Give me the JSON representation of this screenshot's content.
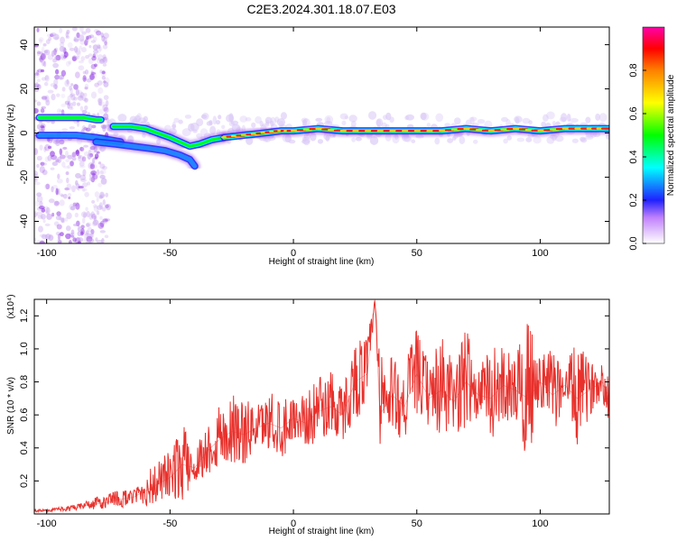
{
  "title": "C2E3.2024.301.18.07.E03",
  "chart_data": [
    {
      "type": "heatmap",
      "xlabel": "Height of straight line (km)",
      "ylabel": "Frequency (Hz)",
      "xlim": [
        -105,
        128
      ],
      "ylim": [
        -50,
        48
      ],
      "xticks": [
        "-100",
        "-50",
        "0",
        "50",
        "100"
      ],
      "yticks": [
        "40",
        "20",
        "0",
        "-20",
        "-40"
      ],
      "xtick_values": [
        -100,
        -50,
        0,
        50,
        100
      ],
      "ytick_values": [
        40,
        20,
        0,
        -20,
        -40
      ],
      "grid": false,
      "colorbar": {
        "label": "Normalized spectral amplitude",
        "ticks": [
          "0.0",
          "0.2",
          "0.4",
          "0.6",
          "0.8"
        ],
        "tick_values": [
          0,
          0.2,
          0.4,
          0.6,
          0.8
        ],
        "range": [
          0,
          1
        ],
        "colors": [
          "#ffffff",
          "#8a2be2",
          "#2020ff",
          "#00ffff",
          "#00ff00",
          "#ffff00",
          "#ff8000",
          "#ff0000",
          "#ff00aa"
        ]
      },
      "ridges": [
        {
          "x": [
            -103,
            -95,
            -90,
            -85,
            -80,
            -78
          ],
          "y": [
            7,
            7,
            7,
            7,
            6,
            6
          ],
          "amplitude": 0.45
        },
        {
          "x": [
            -103,
            -95,
            -88,
            -80,
            -75,
            -70
          ],
          "y": [
            -1,
            -1,
            -1,
            -2,
            -3,
            -4
          ],
          "amplitude": 0.2
        },
        {
          "x": [
            -80,
            -72,
            -65,
            -58,
            -52,
            -46,
            -42,
            -40
          ],
          "y": [
            -4,
            -5,
            -6,
            -7,
            -8,
            -10,
            -12,
            -15
          ],
          "amplitude": 0.3
        },
        {
          "x": [
            -73,
            -66,
            -60,
            -55,
            -50,
            -46,
            -42,
            -38,
            -33,
            -28
          ],
          "y": [
            3,
            3,
            2,
            0,
            -2,
            -4,
            -6,
            -5,
            -3,
            -2
          ],
          "amplitude": 0.5
        },
        {
          "x": [
            -28,
            -20,
            -12,
            -5,
            0,
            10,
            20,
            30,
            40,
            50,
            60,
            70,
            80,
            90,
            100,
            110,
            120,
            128
          ],
          "y": [
            -2,
            -1,
            0,
            1,
            1,
            2,
            1,
            1,
            1,
            1,
            1,
            2,
            1,
            2,
            1,
            2,
            2,
            2
          ],
          "amplitude": 0.95
        }
      ]
    },
    {
      "type": "line",
      "xlabel": "Height of straight line (km)",
      "ylabel": "SNR (10 * v/v)",
      "multiplier": "(x10⁴)",
      "xlim": [
        -105,
        128
      ],
      "ylim": [
        0,
        1.3
      ],
      "xticks": [
        "-100",
        "-50",
        "0",
        "50",
        "100"
      ],
      "yticks": [
        "0.2",
        "0.4",
        "0.6",
        "0.8",
        "1.0",
        "1.2"
      ],
      "xtick_values": [
        -100,
        -50,
        0,
        50,
        100
      ],
      "ytick_values": [
        0.2,
        0.4,
        0.6,
        0.8,
        1.0,
        1.2
      ],
      "grid": false,
      "color": "#e8312c",
      "series": [
        {
          "x": [
            -105,
            -100,
            -95,
            -90,
            -85,
            -80,
            -75,
            -70,
            -65,
            -60,
            -55,
            -50,
            -45,
            -40,
            -35,
            -30,
            -25,
            -20,
            -15,
            -10,
            -5,
            0,
            5,
            10,
            15,
            20,
            25,
            30,
            33,
            35,
            40,
            45,
            50,
            55,
            60,
            65,
            70,
            75,
            80,
            85,
            90,
            95,
            100,
            105,
            110,
            115,
            120,
            125,
            128
          ],
          "y": [
            0.02,
            0.02,
            0.03,
            0.03,
            0.05,
            0.06,
            0.07,
            0.09,
            0.1,
            0.14,
            0.18,
            0.22,
            0.3,
            0.28,
            0.38,
            0.45,
            0.5,
            0.48,
            0.52,
            0.55,
            0.52,
            0.58,
            0.55,
            0.62,
            0.65,
            0.6,
            0.8,
            0.85,
            1.3,
            0.6,
            0.72,
            0.65,
            0.85,
            0.7,
            0.75,
            0.68,
            0.8,
            0.72,
            0.7,
            0.78,
            0.75,
            0.7,
            0.8,
            0.72,
            0.78,
            0.7,
            0.75,
            0.8,
            0.7
          ],
          "envelope": [
            0.03,
            0.03,
            0.04,
            0.05,
            0.07,
            0.1,
            0.12,
            0.15,
            0.14,
            0.25,
            0.32,
            0.38,
            0.55,
            0.38,
            0.55,
            0.65,
            0.72,
            0.7,
            0.65,
            0.72,
            0.75,
            0.7,
            0.72,
            0.82,
            0.86,
            0.78,
            1.05,
            1.1,
            1.3,
            0.95,
            0.95,
            0.9,
            1.12,
            0.9,
            1.08,
            0.92,
            1.12,
            0.88,
            1.0,
            1.02,
            0.96,
            1.16,
            0.95,
            1.0,
            0.9,
            1.05,
            0.92,
            0.9,
            0.88
          ]
        }
      ]
    }
  ]
}
